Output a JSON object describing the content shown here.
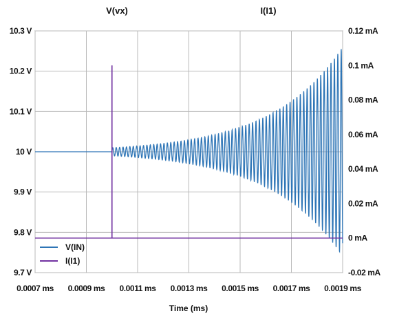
{
  "chart_data": {
    "type": "line",
    "title_left": "V(vx)",
    "title_right": "I(I1)",
    "xlabel": "Time (ms)",
    "x_tick_labels": [
      "0.0007 ms",
      "0.0009 ms",
      "0.0011 ms",
      "0.0013 ms",
      "0.0015 ms",
      "0.0017 ms",
      "0.0019 ms"
    ],
    "x_ticks": [
      0.0007,
      0.0009,
      0.0011,
      0.0013,
      0.0015,
      0.0017,
      0.0019
    ],
    "xlim": [
      0.0007,
      0.0019
    ],
    "y_left_tick_labels": [
      "10.3 V",
      "10.2 V",
      "10.1 V",
      "10 V",
      "9.9 V",
      "9.8 V",
      "9.7 V"
    ],
    "y_left_ticks": [
      10.3,
      10.2,
      10.1,
      10.0,
      9.9,
      9.8,
      9.7
    ],
    "y_left_lim": [
      9.7,
      10.3
    ],
    "y_right_tick_labels": [
      "0.12 mA",
      "0.1 mA",
      "0.08 mA",
      "0.06 mA",
      "0.04 mA",
      "0.02 mA",
      "0 mA",
      "-0.02 mA"
    ],
    "y_right_ticks": [
      0.12,
      0.1,
      0.08,
      0.06,
      0.04,
      0.02,
      0,
      -0.02
    ],
    "y_right_lim": [
      -0.02,
      0.12
    ],
    "grid": true,
    "legend_position": "bottom-left",
    "series": [
      {
        "name": "V(IN)",
        "axis": "left",
        "color": "#2e75b6",
        "description_values": {
          "baseline_before_step": 10.0,
          "step_time_ms": 0.001,
          "oscillation_start_amplitude_v": 0.01,
          "oscillation_end_amplitude_v": 0.26,
          "oscillation_period_ms": 1.33e-05,
          "end_time_ms": 0.0019
        }
      },
      {
        "name": "I(I1)",
        "axis": "right",
        "color": "#7030a0",
        "points": [
          [
            0.0007,
            0
          ],
          [
            0.001,
            0
          ],
          [
            0.001,
            0.1
          ],
          [
            0.001,
            0
          ],
          [
            0.0019,
            0
          ]
        ]
      }
    ]
  }
}
